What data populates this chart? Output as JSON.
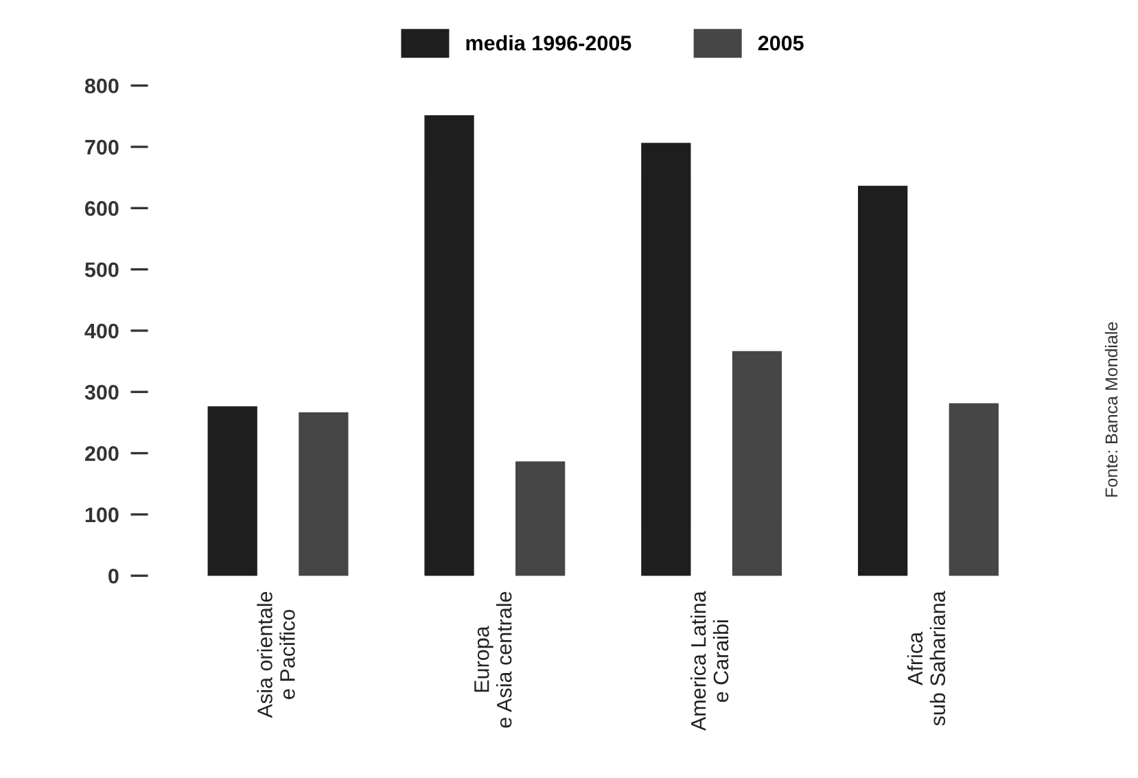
{
  "chart_data": {
    "type": "bar",
    "categories": [
      "Asia orientale\ne Pacifico",
      "Europa\ne Asia centrale",
      "America Latina\ne Caraibi",
      "Africa\nsub Sahariana"
    ],
    "series": [
      {
        "name": "media 1996-2005",
        "color": "#1e1e1e",
        "values": [
          275,
          750,
          705,
          635
        ]
      },
      {
        "name": "2005",
        "color": "#464646",
        "values": [
          265,
          185,
          365,
          280
        ]
      }
    ],
    "ylim": [
      0,
      800
    ],
    "yticks": [
      0,
      100,
      200,
      300,
      400,
      500,
      600,
      700,
      800
    ],
    "grid": false,
    "legend": "top",
    "annotations": [
      "Fonte: Banca Mondiale"
    ]
  }
}
